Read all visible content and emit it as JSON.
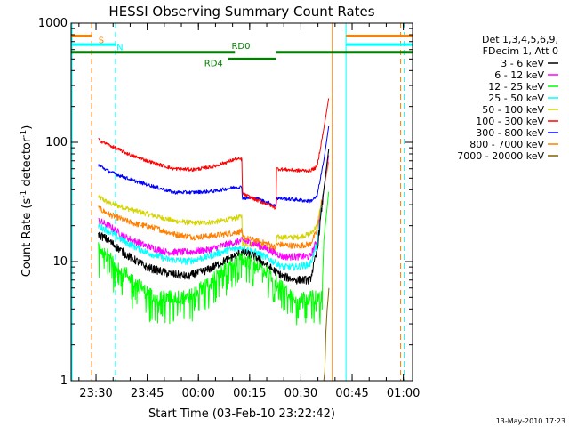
{
  "chart_data": {
    "type": "line",
    "title": "HESSI Observing Summary Count Rates",
    "xlabel": "Start Time (03-Feb-10 23:22:42)",
    "ylabel": "Count Rate (s⁻¹ detector⁻¹)",
    "ylabel_main": "Count Rate (s",
    "ylabel_mid": " detector",
    "ylabel_end": ")",
    "ylabel_sup": "-1",
    "yscale": "log",
    "ylim": [
      1,
      1000
    ],
    "xlim_minutes": [
      0,
      100
    ],
    "ytick_labels": [
      "1",
      "10",
      "100",
      "1000"
    ],
    "xtick_labels": [
      "23:30",
      "23:45",
      "00:00",
      "00:15",
      "00:30",
      "00:45",
      "01:00"
    ],
    "xtick_minutes": [
      7.3,
      22.3,
      37.3,
      52.3,
      67.3,
      82.3,
      97.3
    ],
    "legend": {
      "placement": "right",
      "header": [
        "Det 1,3,4,5,6,9,",
        "FDecim 1, Att 0"
      ],
      "entries": [
        {
          "label": "3 - 6 keV",
          "color": "#000000"
        },
        {
          "label": "6 - 12 keV",
          "color": "#ff00ff"
        },
        {
          "label": "12 - 25 keV",
          "color": "#00ff00"
        },
        {
          "label": "25 - 50 keV",
          "color": "#00ffff"
        },
        {
          "label": "50 - 100 keV",
          "color": "#d4d400"
        },
        {
          "label": "100 - 300 keV",
          "color": "#ff0000"
        },
        {
          "label": "300 - 800 keV",
          "color": "#0000ff"
        },
        {
          "label": "800 - 7000 keV",
          "color": "#ff8000"
        },
        {
          "label": "7000 - 20000 keV",
          "color": "#806000"
        }
      ]
    },
    "flags": [
      {
        "label": "S",
        "color": "#ff8000",
        "segments": [
          [
            0,
            6
          ],
          [
            80.5,
            100
          ]
        ],
        "level": 780
      },
      {
        "label": "N",
        "color": "#00ffff",
        "segments": [
          [
            0,
            13
          ],
          [
            80.5,
            100
          ]
        ],
        "level": 660
      },
      {
        "label": "RD0",
        "color": "#008000",
        "segments": [
          [
            0,
            48
          ],
          [
            60,
            100
          ]
        ],
        "level": 570
      },
      {
        "label": "RD4",
        "color": "#008000",
        "segments": [
          [
            46,
            60
          ]
        ],
        "level": 500
      }
    ],
    "vlines": [
      {
        "minute": 0,
        "color": "#00ffff",
        "style": "solid"
      },
      {
        "minute": 6,
        "color": "#ff8000",
        "style": "dashed"
      },
      {
        "minute": 13,
        "color": "#00ffff",
        "style": "dashed"
      },
      {
        "minute": 76.5,
        "color": "#ff8000",
        "style": "solid"
      },
      {
        "minute": 80.5,
        "color": "#00ffff",
        "style": "solid"
      },
      {
        "minute": 96.5,
        "color": "#ff8000",
        "style": "dashed"
      },
      {
        "minute": 97.5,
        "color": "#00ffff",
        "style": "dashed"
      }
    ],
    "data_window_minutes": [
      8,
      75.5
    ],
    "series": [
      {
        "color": "#d4d400",
        "noise": 0.022,
        "rise": 4,
        "points": [
          [
            8,
            35
          ],
          [
            11,
            31
          ],
          [
            18,
            27
          ],
          [
            25,
            24
          ],
          [
            30,
            22
          ],
          [
            36,
            21
          ],
          [
            42,
            21.5
          ],
          [
            48,
            23
          ],
          [
            50,
            24
          ],
          [
            50.2,
            14
          ],
          [
            54,
            14
          ],
          [
            58,
            13
          ],
          [
            60,
            12.5
          ],
          [
            60.2,
            16
          ],
          [
            66,
            16
          ],
          [
            70,
            17
          ],
          [
            72,
            20
          ],
          [
            74,
            40
          ],
          [
            75.5,
            80
          ]
        ]
      },
      {
        "color": "#ff8000",
        "noise": 0.025,
        "rise": 3,
        "points": [
          [
            8,
            28
          ],
          [
            11,
            25
          ],
          [
            18,
            21
          ],
          [
            25,
            19
          ],
          [
            30,
            17
          ],
          [
            36,
            16
          ],
          [
            42,
            16.5
          ],
          [
            48,
            17.5
          ],
          [
            50,
            18
          ],
          [
            50.2,
            16
          ],
          [
            54,
            15
          ],
          [
            58,
            14
          ],
          [
            60,
            13
          ],
          [
            60.2,
            14
          ],
          [
            66,
            13.5
          ],
          [
            70,
            14
          ],
          [
            72,
            18
          ],
          [
            74,
            40
          ],
          [
            75.5,
            70
          ]
        ]
      },
      {
        "color": "#ff00ff",
        "noise": 0.03,
        "rise": 4,
        "points": [
          [
            8,
            22
          ],
          [
            11,
            20
          ],
          [
            16,
            16
          ],
          [
            22,
            13.5
          ],
          [
            28,
            12
          ],
          [
            34,
            12
          ],
          [
            40,
            12.5
          ],
          [
            46,
            14
          ],
          [
            50,
            15
          ],
          [
            54,
            14
          ],
          [
            58,
            12.5
          ],
          [
            62,
            11
          ],
          [
            66,
            11
          ],
          [
            70,
            11
          ],
          [
            72,
            15
          ],
          [
            74,
            40
          ],
          [
            75.5,
            80
          ]
        ]
      },
      {
        "color": "#00ffff",
        "noise": 0.03,
        "rise": 4,
        "points": [
          [
            8,
            20
          ],
          [
            11,
            18
          ],
          [
            16,
            14.5
          ],
          [
            22,
            12
          ],
          [
            28,
            10.5
          ],
          [
            34,
            10
          ],
          [
            40,
            11
          ],
          [
            46,
            12.5
          ],
          [
            50,
            13
          ],
          [
            54,
            12
          ],
          [
            58,
            10.5
          ],
          [
            62,
            9
          ],
          [
            66,
            9
          ],
          [
            70,
            9.5
          ],
          [
            72,
            14
          ],
          [
            74,
            40
          ],
          [
            75.5,
            90
          ]
        ]
      },
      {
        "color": "#000000",
        "noise": 0.035,
        "rise": 4,
        "points": [
          [
            8,
            17
          ],
          [
            11,
            15
          ],
          [
            16,
            11.5
          ],
          [
            22,
            9
          ],
          [
            28,
            8
          ],
          [
            34,
            7.5
          ],
          [
            40,
            8.5
          ],
          [
            46,
            10.5
          ],
          [
            50,
            12
          ],
          [
            54,
            11
          ],
          [
            58,
            9
          ],
          [
            62,
            7.5
          ],
          [
            66,
            7
          ],
          [
            70,
            7
          ],
          [
            72,
            12
          ],
          [
            74,
            40
          ],
          [
            75.5,
            90
          ]
        ]
      },
      {
        "color": "#00ff00",
        "noise": 0.06,
        "dip": true,
        "rise": 3,
        "points": [
          [
            8,
            13
          ],
          [
            11,
            11
          ],
          [
            16,
            8
          ],
          [
            22,
            5.5
          ],
          [
            28,
            5
          ],
          [
            34,
            5
          ],
          [
            40,
            6.5
          ],
          [
            46,
            9
          ],
          [
            50,
            10.5
          ],
          [
            54,
            9.5
          ],
          [
            58,
            8
          ],
          [
            62,
            6
          ],
          [
            66,
            5
          ],
          [
            70,
            5
          ],
          [
            72,
            5
          ],
          [
            73.5,
            5
          ],
          [
            74,
            15
          ],
          [
            75.5,
            40
          ]
        ]
      },
      {
        "color": "#0000ff",
        "noise": 0.015,
        "rise": 2,
        "points": [
          [
            8,
            65
          ],
          [
            11,
            57
          ],
          [
            18,
            48
          ],
          [
            25,
            42
          ],
          [
            30,
            38
          ],
          [
            36,
            38
          ],
          [
            42,
            39
          ],
          [
            48,
            42
          ],
          [
            50,
            42
          ],
          [
            50.2,
            34
          ],
          [
            54,
            34
          ],
          [
            58,
            31
          ],
          [
            60,
            29
          ],
          [
            60.2,
            34
          ],
          [
            66,
            33
          ],
          [
            70,
            32
          ],
          [
            72,
            35
          ],
          [
            74,
            70
          ],
          [
            75.5,
            140
          ]
        ]
      },
      {
        "color": "#ff0000",
        "noise": 0.015,
        "rise": 2,
        "points": [
          [
            8,
            105
          ],
          [
            11,
            95
          ],
          [
            18,
            77
          ],
          [
            25,
            66
          ],
          [
            30,
            60
          ],
          [
            36,
            59
          ],
          [
            42,
            63
          ],
          [
            48,
            72
          ],
          [
            50,
            72
          ],
          [
            50.2,
            37
          ],
          [
            54,
            33
          ],
          [
            58,
            30
          ],
          [
            60,
            28
          ],
          [
            60.2,
            60
          ],
          [
            66,
            58
          ],
          [
            70,
            58
          ],
          [
            72,
            62
          ],
          [
            74,
            130
          ],
          [
            75.5,
            240
          ]
        ]
      },
      {
        "color": "#806000",
        "noise": 0.0,
        "rise": 0,
        "points": [
          [
            74,
            1
          ],
          [
            74.3,
            1.2
          ],
          [
            74.6,
            2.5
          ],
          [
            75,
            4
          ],
          [
            75.3,
            5
          ],
          [
            75.5,
            6
          ]
        ]
      }
    ]
  },
  "footer_date": "13-May-2010 17:23"
}
